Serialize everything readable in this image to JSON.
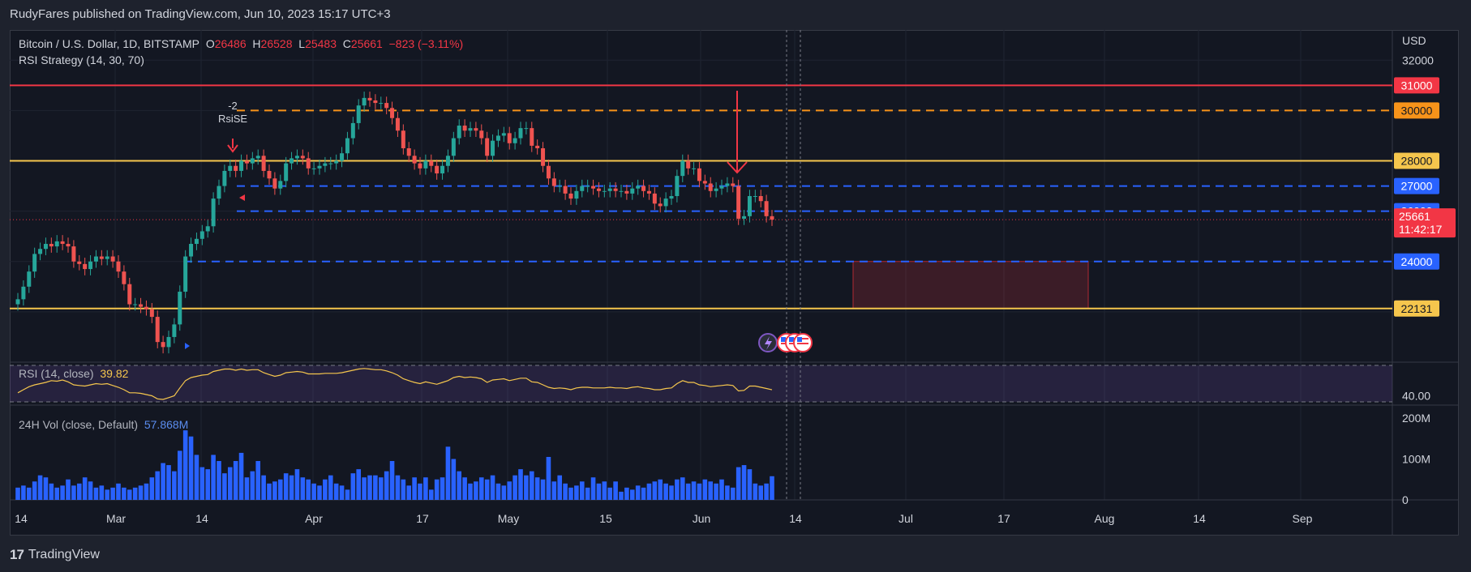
{
  "header": {
    "publisher_line": "RudyFares published on TradingView.com, Jun 10, 2023 15:17 UTC+3"
  },
  "footer": {
    "brand": "TradingView"
  },
  "legend": {
    "symbol": "Bitcoin / U.S. Dollar, 1D, BITSTAMP",
    "ohlc": {
      "o_label": "O",
      "o": "26486",
      "h_label": "H",
      "h": "26528",
      "l_label": "L",
      "l": "25483",
      "c_label": "C",
      "c": "25661",
      "change": "−823 (−3.11%)"
    },
    "strategy": "RSI Strategy (14, 30, 70)",
    "strategy_signal_count": "-2",
    "strategy_signal_label": "RsiSE"
  },
  "rsi_pane": {
    "label": "RSI (14, close)",
    "value": "39.82",
    "axis_label": "40.00"
  },
  "vol_pane": {
    "label": "24H Vol (close, Default)",
    "value": "57.868M",
    "axis_labels": [
      "200M",
      "100M",
      "0"
    ]
  },
  "chart_data": {
    "type": "candlestick",
    "currency": "USD",
    "price_axis_ticks": [
      32000,
      27000,
      26000,
      24000
    ],
    "price_range": [
      20000,
      33200
    ],
    "horizontal_levels": [
      {
        "value": 31000,
        "label": "31000",
        "color": "#f23645",
        "style": "solid"
      },
      {
        "value": 30000,
        "label": "30000",
        "color": "#f7931a",
        "style": "dashed"
      },
      {
        "value": 28000,
        "label": "28000",
        "color": "#f5c64d",
        "style": "solid"
      },
      {
        "value": 27000,
        "label": "27000",
        "color": "#2962ff",
        "style": "dashed"
      },
      {
        "value": 26000,
        "label": "26000",
        "color": "#2962ff",
        "style": "dashed"
      },
      {
        "value": 24000,
        "label": "24000",
        "color": "#2962ff",
        "style": "dashed"
      },
      {
        "value": 22131,
        "label": "22131",
        "color": "#f5c64d",
        "style": "solid"
      }
    ],
    "last_price": {
      "value": 25661,
      "label": "25661",
      "countdown": "11:42:17"
    },
    "time_axis_labels": [
      "14",
      "Mar",
      "14",
      "Apr",
      "17",
      "May",
      "15",
      "Jun",
      "14",
      "Jul",
      "17",
      "Aug",
      "14",
      "Sep"
    ],
    "price_closes": [
      22500,
      23000,
      23600,
      24300,
      24500,
      24700,
      24600,
      24800,
      24700,
      24600,
      24000,
      23900,
      23700,
      24000,
      24200,
      24100,
      24200,
      24000,
      23600,
      23100,
      22300,
      22300,
      22200,
      22100,
      21800,
      20800,
      20600,
      21000,
      21500,
      22800,
      24200,
      24700,
      24900,
      25200,
      25400,
      26500,
      27000,
      27600,
      27800,
      27600,
      28000,
      27900,
      28100,
      28200,
      27600,
      27300,
      26900,
      27200,
      27900,
      28100,
      28200,
      28100,
      27700,
      27700,
      27800,
      27900,
      27900,
      28000,
      28300,
      28900,
      29500,
      30200,
      30500,
      30400,
      30300,
      30300,
      30100,
      29700,
      29200,
      28500,
      28200,
      27900,
      27700,
      28000,
      27800,
      27500,
      27800,
      28200,
      28900,
      29400,
      29200,
      29300,
      29200,
      28900,
      28200,
      28800,
      29000,
      29100,
      28700,
      28900,
      29300,
      29300,
      28600,
      28500,
      27800,
      27300,
      27000,
      27000,
      26700,
      26500,
      26800,
      27000,
      27000,
      26900,
      26800,
      26800,
      26900,
      26800,
      26800,
      26700,
      26900,
      27000,
      26800,
      26700,
      26300,
      26200,
      26500,
      26600,
      27400,
      28000,
      27700,
      27700,
      27200,
      27100,
      26800,
      26900,
      27000,
      27100,
      27000,
      25700,
      25800,
      26600,
      26600,
      26400,
      25800,
      25661
    ],
    "rsi_values": [
      35,
      40,
      45,
      48,
      50,
      52,
      55,
      54,
      56,
      53,
      48,
      47,
      46,
      48,
      50,
      49,
      50,
      47,
      44,
      40,
      35,
      35,
      34,
      32,
      30,
      25,
      24,
      27,
      30,
      43,
      55,
      60,
      62,
      64,
      65,
      70,
      72,
      74,
      74,
      72,
      74,
      72,
      73,
      73,
      68,
      65,
      62,
      64,
      68,
      69,
      70,
      69,
      66,
      66,
      66,
      67,
      67,
      67,
      68,
      70,
      72,
      74,
      75,
      74,
      73,
      73,
      71,
      68,
      64,
      58,
      55,
      52,
      50,
      53,
      51,
      49,
      52,
      55,
      60,
      62,
      60,
      61,
      60,
      58,
      52,
      56,
      57,
      58,
      55,
      57,
      59,
      59,
      53,
      52,
      48,
      44,
      42,
      43,
      42,
      40,
      43,
      44,
      44,
      43,
      43,
      43,
      44,
      43,
      43,
      42,
      44,
      45,
      43,
      42,
      40,
      40,
      42,
      43,
      50,
      55,
      52,
      52,
      48,
      47,
      45,
      46,
      47,
      48,
      47,
      38,
      39,
      46,
      46,
      44,
      42,
      39.82
    ],
    "volume_values": [
      30,
      35,
      30,
      45,
      60,
      55,
      40,
      30,
      35,
      50,
      35,
      40,
      55,
      45,
      30,
      35,
      25,
      30,
      40,
      30,
      25,
      30,
      35,
      40,
      55,
      70,
      90,
      85,
      70,
      120,
      170,
      155,
      110,
      80,
      75,
      110,
      95,
      65,
      80,
      95,
      115,
      55,
      70,
      95,
      60,
      40,
      45,
      50,
      65,
      60,
      75,
      55,
      50,
      40,
      35,
      50,
      60,
      40,
      35,
      25,
      65,
      75,
      55,
      60,
      60,
      55,
      70,
      95,
      60,
      50,
      35,
      55,
      40,
      55,
      25,
      50,
      55,
      130,
      100,
      70,
      55,
      40,
      45,
      55,
      50,
      60,
      40,
      35,
      45,
      60,
      75,
      60,
      70,
      55,
      50,
      105,
      45,
      60,
      40,
      30,
      35,
      45,
      30,
      55,
      40,
      45,
      30,
      45,
      20,
      30,
      25,
      35,
      30,
      40,
      45,
      50,
      40,
      35,
      50,
      55,
      40,
      45,
      40,
      50,
      45,
      40,
      50,
      35,
      30,
      80,
      85,
      75,
      40,
      35,
      40,
      57.868
    ],
    "annotations": [
      {
        "type": "zone",
        "from": 22131,
        "to": 24000,
        "note": "rectangle"
      },
      {
        "type": "arrow",
        "direction": "down",
        "note": "arrow near Jun"
      }
    ]
  }
}
